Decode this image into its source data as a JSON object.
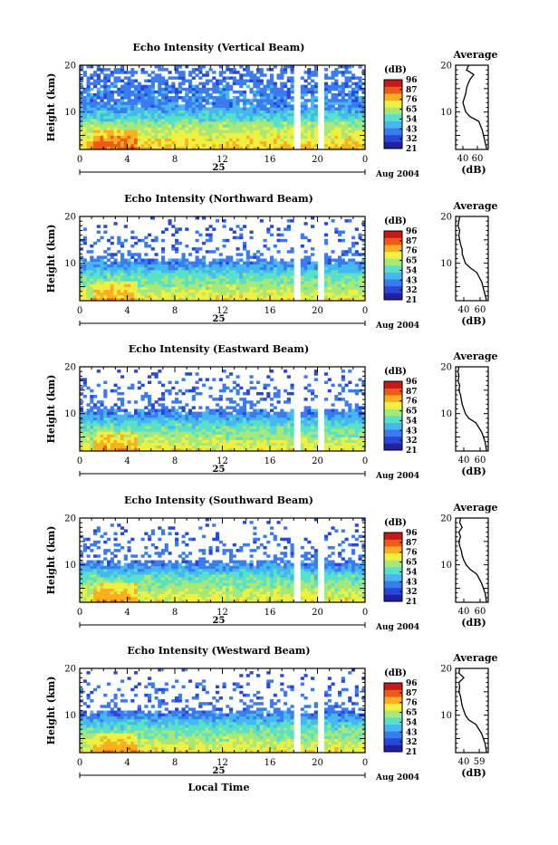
{
  "figure": {
    "xlabel_bottom": "Local Time",
    "date_label": "Aug 2004",
    "day_label": "25",
    "colorbar_unit": "(dB)",
    "colorbar_ticks": [
      "96",
      "87",
      "76",
      "65",
      "54",
      "43",
      "32",
      "21"
    ],
    "colors": {
      "scale": [
        "#2020a0",
        "#2848d8",
        "#3a7cf0",
        "#46b8f0",
        "#58e0c8",
        "#a8e878",
        "#f0f040",
        "#f8b020",
        "#f05a18",
        "#c81818"
      ]
    }
  },
  "chart_data": [
    {
      "type": "heatmap",
      "title": "Echo Intensity (Vertical Beam)",
      "ylabel": "Height (km)",
      "xlim": [
        0,
        24
      ],
      "ylim": [
        2,
        20
      ],
      "xticks": [
        "0",
        "4",
        "8",
        "12",
        "16",
        "20",
        "0"
      ],
      "yticks": [
        "10",
        "20"
      ],
      "avg_title": "Average",
      "avg_xlabel": "(dB)",
      "avg_xticks": [
        "40",
        "60"
      ],
      "avg_xlim": [
        30,
        75
      ],
      "avg_profile": {
        "height": [
          2,
          4,
          6,
          8,
          9,
          10,
          11,
          12,
          13,
          14,
          15,
          16,
          17,
          18,
          19,
          20
        ],
        "db": [
          73,
          70,
          67,
          62,
          50,
          44,
          42,
          40,
          42,
          44,
          45,
          47,
          50,
          55,
          45,
          48
        ]
      }
    },
    {
      "type": "heatmap",
      "title": "Echo Intensity (Northward Beam)",
      "ylabel": "Height (km)",
      "xlim": [
        0,
        24
      ],
      "ylim": [
        2,
        20
      ],
      "xticks": [
        "0",
        "4",
        "8",
        "12",
        "16",
        "20",
        "0"
      ],
      "yticks": [
        "10",
        "20"
      ],
      "avg_title": "Average",
      "avg_xlabel": "(dB)",
      "avg_xticks": [
        "40",
        "60"
      ],
      "avg_xlim": [
        30,
        70
      ],
      "avg_profile": {
        "height": [
          2,
          4,
          6,
          8,
          9,
          10,
          11,
          12,
          13,
          14,
          15,
          16,
          17,
          18,
          19,
          20
        ],
        "db": [
          68,
          65,
          62,
          56,
          48,
          42,
          40,
          38,
          38,
          36,
          35,
          34,
          35,
          33,
          34,
          35
        ]
      }
    },
    {
      "type": "heatmap",
      "title": "Echo Intensity (Eastward Beam)",
      "ylabel": "Height (km)",
      "xlim": [
        0,
        24
      ],
      "ylim": [
        2,
        20
      ],
      "xticks": [
        "0",
        "4",
        "8",
        "12",
        "16",
        "20",
        "0"
      ],
      "yticks": [
        "10",
        "20"
      ],
      "avg_title": "Average",
      "avg_xlabel": "(dB)",
      "avg_xticks": [
        "40",
        "60"
      ],
      "avg_xlim": [
        30,
        70
      ],
      "avg_profile": {
        "height": [
          2,
          4,
          6,
          8,
          9,
          10,
          11,
          12,
          13,
          14,
          15,
          16,
          17,
          18,
          19,
          20
        ],
        "db": [
          68,
          66,
          62,
          55,
          46,
          42,
          40,
          38,
          37,
          36,
          34,
          35,
          33,
          34,
          33,
          34
        ]
      }
    },
    {
      "type": "heatmap",
      "title": "Echo Intensity (Southward Beam)",
      "ylabel": "Height (km)",
      "xlim": [
        0,
        24
      ],
      "ylim": [
        2,
        20
      ],
      "xticks": [
        "0",
        "4",
        "8",
        "12",
        "16",
        "20",
        "0"
      ],
      "yticks": [
        "10",
        "20"
      ],
      "avg_title": "Average",
      "avg_xlabel": "(dB)",
      "avg_xticks": [
        "40",
        "60"
      ],
      "avg_xlim": [
        30,
        70
      ],
      "avg_profile": {
        "height": [
          2,
          4,
          6,
          8,
          9,
          10,
          11,
          12,
          13,
          14,
          15,
          16,
          17,
          18,
          19,
          20
        ],
        "db": [
          68,
          66,
          62,
          56,
          48,
          43,
          40,
          38,
          37,
          35,
          34,
          36,
          34,
          38,
          35,
          36
        ]
      }
    },
    {
      "type": "heatmap",
      "title": "Echo Intensity (Westward Beam)",
      "ylabel": "Height (km)",
      "xlim": [
        0,
        24
      ],
      "ylim": [
        2,
        20
      ],
      "xticks": [
        "0",
        "4",
        "8",
        "12",
        "16",
        "20",
        "0"
      ],
      "yticks": [
        "10",
        "20"
      ],
      "avg_title": "Average",
      "avg_xlabel": "(dB)",
      "avg_xticks": [
        "40",
        "59"
      ],
      "avg_xlim": [
        30,
        70
      ],
      "avg_profile": {
        "height": [
          2,
          4,
          6,
          8,
          9,
          10,
          11,
          12,
          13,
          14,
          15,
          16,
          17,
          18,
          19,
          20
        ],
        "db": [
          68,
          66,
          62,
          55,
          46,
          42,
          40,
          38,
          37,
          36,
          34,
          35,
          34,
          40,
          34,
          35
        ]
      }
    }
  ]
}
